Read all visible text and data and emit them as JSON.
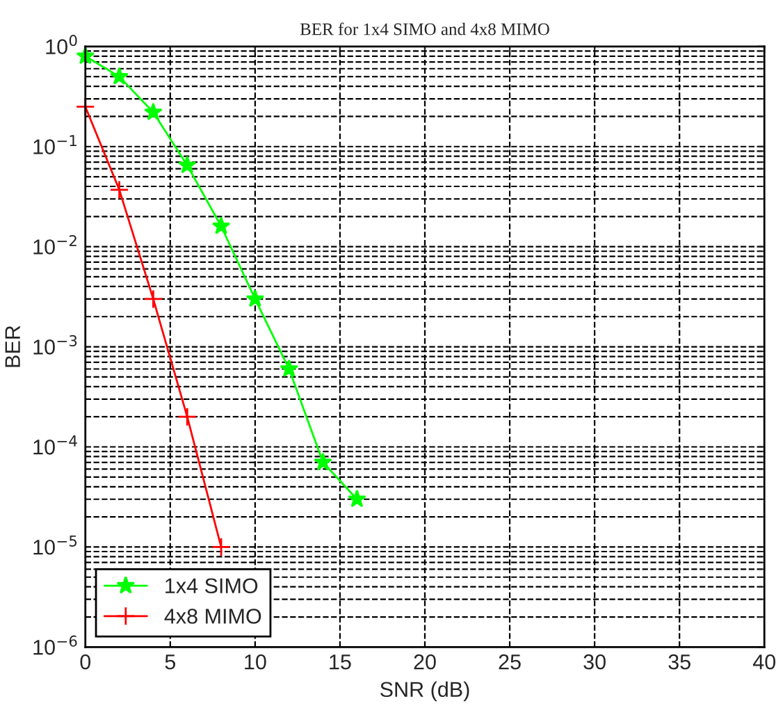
{
  "chart_data": {
    "type": "line",
    "title": "BER for 1x4 SIMO and 4x8 MIMO",
    "xlabel": "SNR (dB)",
    "ylabel": "BER",
    "log": "y",
    "grid": true,
    "legend": "bottom left",
    "line_style": "solid",
    "xlim": [
      0,
      40
    ],
    "xticks": [
      0,
      5,
      10,
      15,
      20,
      25,
      30,
      35,
      40
    ],
    "ylim": [
      1e-06,
      1
    ],
    "yticks": [
      {
        "value": 1e-06,
        "label": "10$^{−6}$"
      },
      {
        "value": 1e-05,
        "label": "10$^{−5}$"
      },
      {
        "value": 0.0001,
        "label": "10$^{−4}$"
      },
      {
        "value": 0.001,
        "label": "10$^{−3}$"
      },
      {
        "value": 0.01,
        "label": "10$^{−2}$"
      },
      {
        "value": 0.1,
        "label": "10$^{−1}$"
      },
      {
        "value": 1,
        "label": "10$^{0}$"
      }
    ],
    "series": [
      {
        "name": "1x4 SIMO",
        "color": "#00ff00",
        "marker": "star",
        "x": [
          0,
          2,
          4,
          6,
          8,
          10,
          12,
          14,
          16
        ],
        "values": [
          0.8,
          0.5,
          0.22,
          0.065,
          0.016,
          0.003,
          0.0006,
          7e-05,
          3e-05
        ]
      },
      {
        "name": "4x8 MIMO",
        "color": "#ff0000",
        "marker": "cross",
        "x": [
          0,
          2,
          4,
          6,
          8
        ],
        "values": [
          0.25,
          0.037,
          0.003,
          0.0002,
          1e-05
        ]
      }
    ]
  }
}
